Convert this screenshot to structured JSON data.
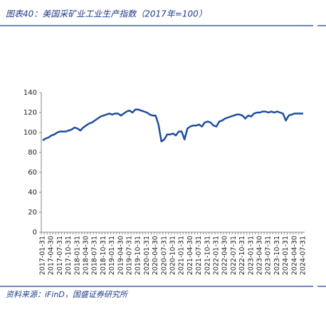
{
  "chart_data": {
    "type": "line",
    "title": "图表40：美国采矿业工业生产指数（2017年=100）",
    "source": "资料来源：iFinD，国盛证券研究所",
    "categories": [
      "2017-01-31",
      null,
      null,
      "2017-04-30",
      null,
      null,
      "2017-07-31",
      null,
      null,
      "2017-10-31",
      null,
      null,
      "2018-01-31",
      null,
      null,
      "2018-04-30",
      null,
      null,
      "2018-07-31",
      null,
      null,
      "2018-10-31",
      null,
      null,
      "2019-01-31",
      null,
      null,
      "2019-04-30",
      null,
      null,
      "2019-07-31",
      null,
      null,
      "2019-10-31",
      null,
      null,
      "2020-01-31",
      null,
      null,
      "2020-04-30",
      null,
      null,
      "2020-07-31",
      null,
      null,
      "2020-10-31",
      null,
      null,
      "2021-01-31",
      null,
      null,
      "2021-04-30",
      null,
      null,
      "2021-07-31",
      null,
      null,
      "2021-10-31",
      null,
      null,
      "2022-01-31",
      null,
      null,
      "2022-04-30",
      null,
      null,
      "2022-07-31",
      null,
      null,
      "2022-10-31",
      null,
      null,
      "2023-01-31",
      null,
      null,
      "2023-04-30",
      null,
      null,
      "2023-07-31",
      null,
      null,
      "2023-10-31",
      null,
      null,
      "2024-01-31",
      null,
      null,
      "2024-04-30",
      null,
      null,
      "2024-07-31"
    ],
    "series": [
      {
        "color": "#1e4f9c",
        "values": [
          92,
          94,
          95,
          97,
          98,
          100,
          101,
          101,
          101,
          102,
          103,
          105,
          104,
          102,
          105,
          107,
          109,
          110,
          112,
          114,
          116,
          117,
          118,
          119,
          118,
          119,
          119,
          117,
          119,
          121,
          122,
          120,
          123,
          123,
          122,
          121,
          120,
          118,
          117,
          117,
          108,
          91,
          93,
          98,
          98,
          99,
          97,
          101,
          101,
          93,
          104,
          106,
          107,
          107,
          108,
          106,
          110,
          111,
          110,
          107,
          106,
          111,
          112,
          114,
          115,
          116,
          117,
          118,
          118,
          117,
          114,
          117,
          116,
          119,
          120,
          120,
          121,
          121,
          120,
          121,
          120,
          121,
          120,
          119,
          112,
          117,
          118,
          119,
          119,
          119,
          119
        ]
      }
    ],
    "ylim": [
      0,
      140
    ],
    "yticks": [
      0,
      20,
      40,
      60,
      80,
      100,
      120,
      140
    ],
    "grid": false
  }
}
